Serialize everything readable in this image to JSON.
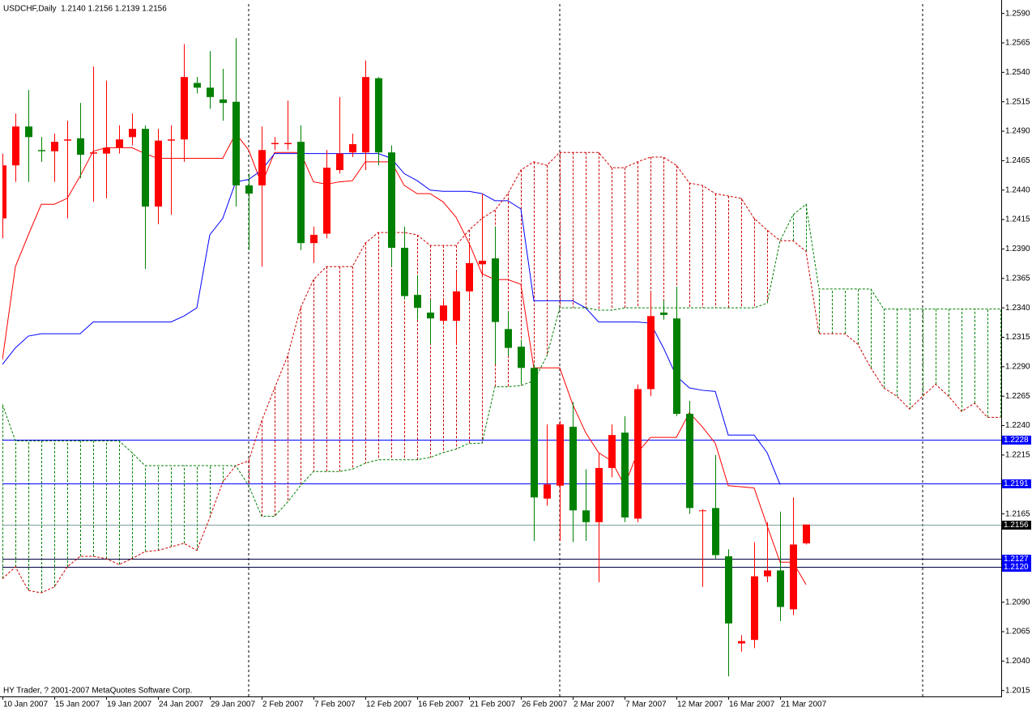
{
  "chart_data": {
    "type": "candlestick",
    "title": "USDCHF,Daily  1.2140 1.2156 1.2139 1.2156",
    "footer": "HY Trader, ? 2001-2007 MetaQuotes Software Corp.",
    "categories": [
      "10 Jan 2007",
      null,
      null,
      null,
      "15 Jan 2007",
      null,
      null,
      null,
      "19 Jan 2007",
      null,
      null,
      null,
      "24 Jan 2007",
      null,
      null,
      null,
      "29 Jan 2007",
      null,
      null,
      null,
      "2 Feb 2007",
      null,
      null,
      null,
      "7 Feb 2007",
      null,
      null,
      null,
      "12 Feb 2007",
      null,
      null,
      null,
      "16 Feb 2007",
      null,
      null,
      null,
      "21 Feb 2007",
      null,
      null,
      null,
      "26 Feb 2007",
      null,
      null,
      null,
      "2 Mar 2007",
      null,
      null,
      null,
      "7 Mar 2007",
      null,
      null,
      null,
      "12 Mar 2007",
      null,
      null,
      null,
      "16 Mar 2007",
      null,
      null,
      null,
      "21 Mar 2007",
      null,
      null,
      null,
      null,
      null,
      null,
      null,
      null,
      null,
      null,
      null,
      null,
      null,
      null,
      null,
      null,
      null
    ],
    "open": [
      1.2416,
      1.2461,
      1.2494,
      1.2474,
      1.2473,
      1.2482,
      1.2484,
      1.2471,
      1.2471,
      1.2476,
      1.2485,
      1.2492,
      1.2426,
      1.2482,
      1.2483,
      1.2531,
      1.2527,
      1.2517,
      1.2515,
      1.2444,
      1.2444,
      1.2479,
      1.2479,
      1.2481,
      1.2395,
      1.2403,
      1.2457,
      1.2472,
      1.2472,
      1.2535,
      1.2472,
      1.2391,
      1.2351,
      1.2336,
      1.2329,
      1.2329,
      1.2354,
      1.2377,
      1.2382,
      1.2322,
      1.2307,
      1.2289,
      1.2178,
      1.2189,
      1.2239,
      1.2168,
      1.2158,
      1.2204,
      1.2234,
      1.2161,
      1.2271,
      1.2336,
      1.2331,
      1.225,
      1.2168,
      1.217,
      1.2129,
      1.2055,
      1.2058,
      1.2112,
      1.2117,
      1.2084,
      1.214,
      null,
      null,
      null,
      null,
      null,
      null,
      null,
      null,
      null,
      null,
      null,
      null,
      null,
      null,
      null
    ],
    "high": [
      1.2471,
      1.2505,
      1.2525,
      1.2485,
      1.2488,
      1.2499,
      1.2514,
      1.2545,
      1.2533,
      1.2495,
      1.2505,
      1.2495,
      1.2492,
      1.2495,
      1.2564,
      1.2536,
      1.2558,
      1.2543,
      1.2569,
      1.2454,
      1.2494,
      1.2485,
      1.2516,
      1.2495,
      1.2409,
      1.2474,
      1.2519,
      1.2488,
      1.255,
      1.2536,
      1.2478,
      1.2409,
      1.2368,
      1.2347,
      1.2347,
      1.2371,
      1.2395,
      1.2437,
      1.2409,
      1.2337,
      1.2313,
      1.2292,
      1.2241,
      1.2244,
      1.226,
      1.2203,
      1.2217,
      1.2241,
      1.2248,
      1.2275,
      1.2354,
      1.2346,
      1.2358,
      1.2261,
      1.2169,
      1.2215,
      1.2135,
      1.2062,
      1.2141,
      1.2158,
      1.2167,
      1.2179,
      1.2156,
      null,
      null,
      null,
      null,
      null,
      null,
      null,
      null,
      null,
      null,
      null,
      null,
      null,
      null,
      null
    ],
    "low": [
      1.2399,
      1.2447,
      1.2447,
      1.2464,
      1.2447,
      1.2416,
      1.245,
      1.243,
      1.2433,
      1.2471,
      1.2478,
      1.2373,
      1.2411,
      1.2419,
      1.2464,
      1.2522,
      1.2509,
      1.2499,
      1.2426,
      1.2389,
      1.2375,
      1.2474,
      1.2474,
      1.2389,
      1.2378,
      1.2399,
      1.2454,
      1.2468,
      1.2457,
      1.2461,
      1.2375,
      1.2347,
      1.233,
      1.2309,
      1.2327,
      1.2309,
      1.2347,
      1.2368,
      1.2292,
      1.2299,
      1.2275,
      1.2142,
      1.2172,
      1.2142,
      1.2141,
      1.2142,
      1.2107,
      1.2196,
      1.2158,
      1.2158,
      1.2265,
      1.233,
      1.2248,
      1.2165,
      1.2103,
      1.2127,
      1.2027,
      1.2048,
      1.2051,
      1.2107,
      1.2074,
      1.2079,
      1.2139,
      null,
      null,
      null,
      null,
      null,
      null,
      null,
      null,
      null,
      null,
      null,
      null,
      null,
      null,
      null
    ],
    "close": [
      1.2461,
      1.2494,
      1.2485,
      1.2473,
      1.2481,
      1.2483,
      1.247,
      1.2472,
      1.2476,
      1.2483,
      1.2492,
      1.2426,
      1.2482,
      1.2483,
      1.2536,
      1.2527,
      1.2519,
      1.2514,
      1.2444,
      1.2437,
      1.2474,
      1.248,
      1.248,
      1.2395,
      1.2402,
      1.2459,
      1.2471,
      1.2479,
      1.2536,
      1.2472,
      1.2391,
      1.235,
      1.234,
      1.2331,
      1.2342,
      1.2354,
      1.2378,
      1.238,
      1.2328,
      1.2306,
      1.2289,
      1.2179,
      1.219,
      1.2241,
      1.2168,
      1.2158,
      1.2204,
      1.2232,
      1.2162,
      1.2271,
      1.2333,
      1.2334,
      1.225,
      1.217,
      1.2168,
      1.213,
      1.2072,
      1.2057,
      1.2112,
      1.2117,
      1.2086,
      1.2139,
      1.2156,
      null,
      null,
      null,
      null,
      null,
      null,
      null,
      null,
      null,
      null,
      null,
      null,
      null,
      null,
      null
    ],
    "up_color": "#ff0000",
    "down_color": "#008000",
    "lines": [
      {
        "color": "#ff0000",
        "style": "solid",
        "values": [
          1.2296,
          1.2375,
          1.2402,
          1.2428,
          1.2428,
          1.2433,
          1.2452,
          1.2473,
          1.2476,
          1.2476,
          1.2476,
          1.2471,
          1.2467,
          1.2467,
          1.2467,
          1.2467,
          1.2467,
          1.2467,
          1.2488,
          1.2474,
          1.2445,
          1.2472,
          1.2472,
          1.2472,
          1.2447,
          1.2445,
          1.2447,
          1.2448,
          1.2464,
          1.2464,
          1.2464,
          1.2444,
          1.2437,
          1.2437,
          1.243,
          1.2417,
          1.2395,
          1.2369,
          1.2364,
          1.2364,
          1.236,
          1.2289,
          1.2289,
          1.2289,
          1.2258,
          1.2234,
          1.2217,
          1.221,
          1.2189,
          1.2217,
          1.223,
          1.223,
          1.223,
          1.2251,
          1.2239,
          1.2225,
          1.2189,
          1.2188,
          1.2187,
          1.2155,
          1.2124,
          1.2124,
          1.2105,
          null,
          null,
          null,
          null,
          null,
          null,
          null,
          null,
          null,
          null,
          null,
          null,
          null,
          null,
          null
        ]
      },
      {
        "color": "#0000ff",
        "style": "solid",
        "values": [
          1.2292,
          1.2306,
          1.2316,
          1.2318,
          1.2318,
          1.2318,
          1.2318,
          1.2328,
          1.2328,
          1.2328,
          1.2328,
          1.2328,
          1.2328,
          1.2328,
          1.2333,
          1.234,
          1.2402,
          1.2416,
          1.2447,
          1.2449,
          1.2457,
          1.2471,
          1.2471,
          1.2471,
          1.2471,
          1.2471,
          1.2471,
          1.2471,
          1.2471,
          1.2471,
          1.2467,
          1.2454,
          1.2448,
          1.244,
          1.2439,
          1.2439,
          1.2439,
          1.2437,
          1.2431,
          1.2431,
          1.2424,
          1.2346,
          1.2346,
          1.2346,
          1.2346,
          1.234,
          1.2328,
          1.2328,
          1.2328,
          1.2328,
          1.2327,
          1.2306,
          1.2282,
          1.2272,
          1.227,
          1.2269,
          1.2232,
          1.2232,
          1.2232,
          1.2217,
          1.219,
          null,
          null,
          null,
          null,
          null,
          null,
          null,
          null,
          null,
          null,
          null,
          null,
          null,
          null,
          null,
          null,
          null
        ]
      },
      {
        "color": "#cc0000",
        "style": "dash",
        "values": [
          1.211,
          1.212,
          1.21,
          1.2098,
          1.2103,
          1.212,
          1.2129,
          1.2129,
          1.2127,
          1.2122,
          1.2127,
          1.2133,
          1.2134,
          1.2137,
          1.214,
          1.2134,
          1.2162,
          1.2192,
          1.2206,
          1.221,
          1.2244,
          1.2272,
          1.2299,
          1.234,
          1.2364,
          1.2375,
          1.2375,
          1.2375,
          1.2395,
          1.2404,
          1.2404,
          1.2404,
          1.2402,
          1.2393,
          1.2393,
          1.2393,
          1.2406,
          1.2416,
          1.2423,
          1.2437,
          1.2457,
          1.2464,
          1.2461,
          1.2472,
          1.2472,
          1.2472,
          1.2472,
          1.2459,
          1.2459,
          1.2464,
          1.2468,
          1.2468,
          1.2461,
          1.2446,
          1.2444,
          1.2437,
          1.2435,
          1.2433,
          1.2416,
          1.2406,
          1.2397,
          1.2397,
          1.2388,
          1.2318,
          1.2318,
          1.2318,
          1.2309,
          1.2289,
          1.2272,
          1.2265,
          1.2254,
          1.2265,
          1.2275,
          1.2265,
          1.2252,
          1.2259,
          1.2247,
          1.2247
        ]
      },
      {
        "color": "#008000",
        "style": "dash",
        "values": [
          1.2258,
          1.2227,
          1.2227,
          1.2227,
          1.2227,
          1.2227,
          1.2227,
          1.2227,
          1.2227,
          1.2227,
          1.2217,
          1.2206,
          1.2206,
          1.2206,
          1.2206,
          1.2206,
          1.2206,
          1.2206,
          1.2206,
          1.2189,
          1.2163,
          1.2163,
          1.2175,
          1.2189,
          1.2201,
          1.2201,
          1.2201,
          1.2203,
          1.2208,
          1.2211,
          1.2211,
          1.2211,
          1.2211,
          1.2213,
          1.2217,
          1.222,
          1.2225,
          1.2225,
          1.2273,
          1.2273,
          1.2274,
          1.2278,
          1.2299,
          1.234,
          1.234,
          1.234,
          1.2338,
          1.2338,
          1.234,
          1.234,
          1.234,
          1.234,
          1.234,
          1.234,
          1.234,
          1.234,
          1.234,
          1.234,
          1.234,
          1.2344,
          1.2397,
          1.2419,
          1.2428,
          1.2356,
          1.2356,
          1.2356,
          1.2356,
          1.2356,
          1.2339,
          1.2339,
          1.2339,
          1.2339,
          1.2339,
          1.2339,
          1.2339,
          1.2339,
          1.2339,
          1.2339
        ]
      }
    ],
    "cloud": true,
    "levels": [
      {
        "value": 1.2228,
        "color": "#0000ff",
        "label_color": "#0000ff"
      },
      {
        "value": 1.2191,
        "color": "#0000ff",
        "label_color": "#0000ff"
      },
      {
        "value": 1.2156,
        "color": "#7f9f9f",
        "label_color": "#000000"
      },
      {
        "value": 1.2127,
        "color": "#000040",
        "label_color": "#0000ff"
      },
      {
        "value": 1.212,
        "label": "1.2120",
        "color": "#000040",
        "label_color": "#0000ff"
      }
    ],
    "ylim": [
      1.201,
      1.2598
    ],
    "yticks": [
      {
        "value": 1.259,
        "label": "1.2590"
      },
      1.2565,
      {
        "value": 1.254,
        "label": "1.2540"
      },
      1.2515,
      {
        "value": 1.249,
        "label": "1.2490"
      },
      1.2465,
      {
        "value": 1.244,
        "label": "1.2440"
      },
      1.2415,
      {
        "value": 1.239,
        "label": "1.2390"
      },
      1.2365,
      {
        "value": 1.234,
        "label": "1.2340"
      },
      1.2315,
      {
        "value": 1.229,
        "label": "1.2290"
      },
      1.2265,
      {
        "value": 1.224,
        "label": "1.2240"
      },
      1.2215,
      1.2165,
      {
        "value": 1.209,
        "label": "1.2090"
      },
      1.2065,
      {
        "value": 1.204,
        "label": "1.2040"
      },
      1.2015
    ]
  }
}
